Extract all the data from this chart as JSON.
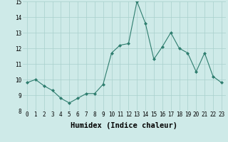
{
  "x": [
    0,
    1,
    2,
    3,
    4,
    5,
    6,
    7,
    8,
    9,
    10,
    11,
    12,
    13,
    14,
    15,
    16,
    17,
    18,
    19,
    20,
    21,
    22,
    23
  ],
  "y": [
    9.8,
    10.0,
    9.6,
    9.3,
    8.8,
    8.5,
    8.8,
    9.1,
    9.1,
    9.7,
    11.7,
    12.2,
    12.3,
    15.0,
    13.6,
    11.3,
    12.1,
    13.0,
    12.0,
    11.7,
    10.5,
    11.7,
    10.2,
    9.8
  ],
  "xlabel": "Humidex (Indice chaleur)",
  "ylim": [
    8,
    15
  ],
  "xlim": [
    -0.5,
    23.5
  ],
  "yticks": [
    8,
    9,
    10,
    11,
    12,
    13,
    14,
    15
  ],
  "xticks": [
    0,
    1,
    2,
    3,
    4,
    5,
    6,
    7,
    8,
    9,
    10,
    11,
    12,
    13,
    14,
    15,
    16,
    17,
    18,
    19,
    20,
    21,
    22,
    23
  ],
  "line_color": "#2e7d6e",
  "marker": "D",
  "marker_size": 2.0,
  "bg_color": "#ceeae8",
  "grid_color": "#a8d0cc",
  "tick_label_fontsize": 5.5,
  "xlabel_fontsize": 7.5
}
